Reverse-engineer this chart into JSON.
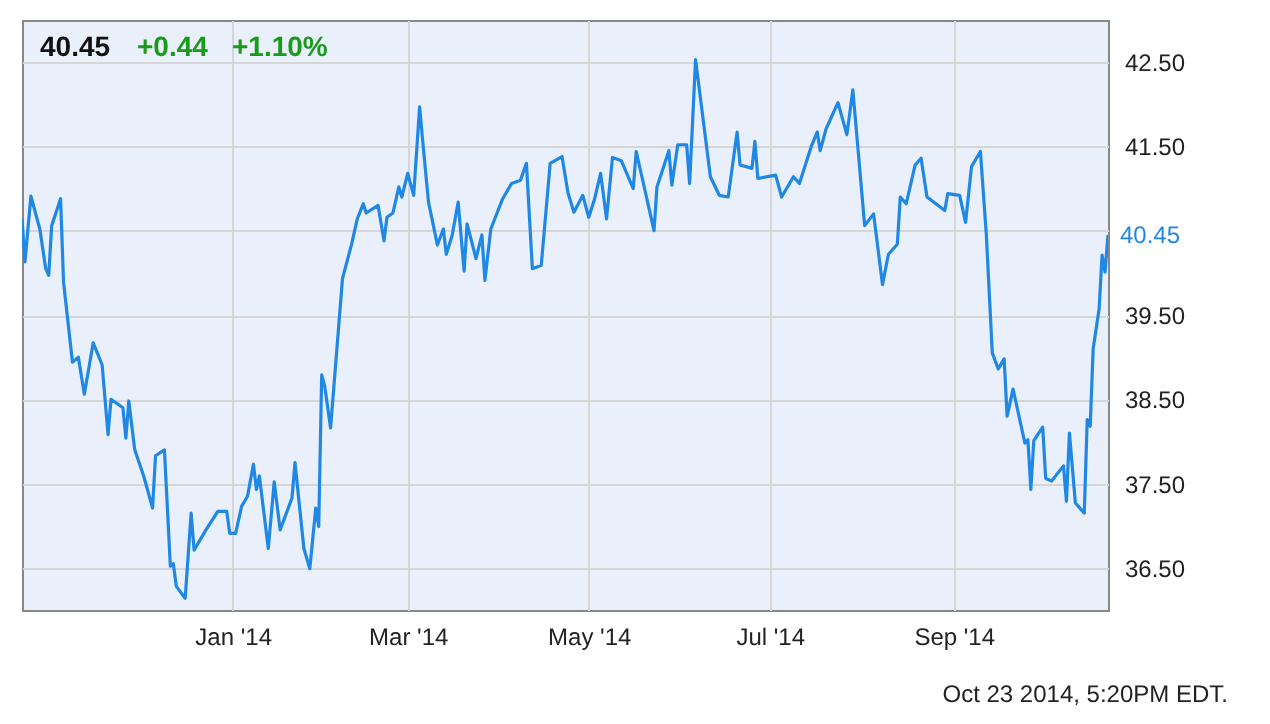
{
  "chart_data": {
    "type": "line",
    "title": "40.45",
    "x": [
      "2013-10-22",
      "2013-10-23",
      "2013-10-25",
      "2013-10-28",
      "2013-10-30",
      "2013-10-31",
      "2013-11-01",
      "2013-11-04",
      "2013-11-05",
      "2013-11-08",
      "2013-11-10",
      "2013-11-12",
      "2013-11-15",
      "2013-11-18",
      "2013-11-20",
      "2013-11-21",
      "2013-11-25",
      "2013-11-26",
      "2013-11-27",
      "2013-11-29",
      "2013-12-02",
      "2013-12-05",
      "2013-12-06",
      "2013-12-09",
      "2013-12-11",
      "2013-12-12",
      "2013-12-13",
      "2013-12-16",
      "2013-12-18",
      "2013-12-19",
      "2013-12-23",
      "2013-12-27",
      "2013-12-30",
      "2013-12-31",
      "2014-01-02",
      "2014-01-04",
      "2014-01-06",
      "2014-01-08",
      "2014-01-09",
      "2014-01-10",
      "2014-01-13",
      "2014-01-15",
      "2014-01-17",
      "2014-01-21",
      "2014-01-22",
      "2014-01-25",
      "2014-01-27",
      "2014-01-29",
      "2014-01-30",
      "2014-01-31",
      "2014-02-01",
      "2014-02-03",
      "2014-02-07",
      "2014-02-10",
      "2014-02-12",
      "2014-02-14",
      "2014-02-15",
      "2014-02-19",
      "2014-02-21",
      "2014-02-22",
      "2014-02-24",
      "2014-02-26",
      "2014-02-27",
      "2014-03-01",
      "2014-03-03",
      "2014-03-05",
      "2014-03-06",
      "2014-03-08",
      "2014-03-11",
      "2014-03-13",
      "2014-03-14",
      "2014-03-16",
      "2014-03-18",
      "2014-03-20",
      "2014-03-21",
      "2014-03-24",
      "2014-03-26",
      "2014-03-27",
      "2014-03-29",
      "2014-04-02",
      "2014-04-05",
      "2014-04-08",
      "2014-04-10",
      "2014-04-12",
      "2014-04-15",
      "2014-04-18",
      "2014-04-22",
      "2014-04-24",
      "2014-04-26",
      "2014-04-29",
      "2014-05-01",
      "2014-05-03",
      "2014-05-05",
      "2014-05-07",
      "2014-05-09",
      "2014-05-12",
      "2014-05-16",
      "2014-05-17",
      "2014-05-23",
      "2014-05-24",
      "2014-05-28",
      "2014-05-29",
      "2014-05-31",
      "2014-06-03",
      "2014-06-04",
      "2014-06-06",
      "2014-06-11",
      "2014-06-14",
      "2014-06-17",
      "2014-06-20",
      "2014-06-21",
      "2014-06-25",
      "2014-06-26",
      "2014-06-27",
      "2014-07-03",
      "2014-07-05",
      "2014-07-09",
      "2014-07-11",
      "2014-07-15",
      "2014-07-17",
      "2014-07-18",
      "2014-07-20",
      "2014-07-24",
      "2014-07-27",
      "2014-07-29",
      "2014-08-02",
      "2014-08-05",
      "2014-08-08",
      "2014-08-10",
      "2014-08-13",
      "2014-08-14",
      "2014-08-16",
      "2014-08-19",
      "2014-08-21",
      "2014-08-23",
      "2014-08-29",
      "2014-08-30",
      "2014-09-03",
      "2014-09-05",
      "2014-09-07",
      "2014-09-10",
      "2014-09-12",
      "2014-09-14",
      "2014-09-16",
      "2014-09-18",
      "2014-09-19",
      "2014-09-21",
      "2014-09-25",
      "2014-09-26",
      "2014-09-27",
      "2014-09-28",
      "2014-10-01",
      "2014-10-02",
      "2014-10-04",
      "2014-10-08",
      "2014-10-09",
      "2014-10-10",
      "2014-10-12",
      "2014-10-15",
      "2014-10-16",
      "2014-10-17",
      "2014-10-18",
      "2014-10-20",
      "2014-10-21",
      "2014-10-22",
      "2014-10-23"
    ],
    "series": [
      {
        "color": "#1f88e5",
        "values": [
          40.64,
          40.13,
          40.91,
          40.52,
          40.05,
          39.97,
          40.56,
          40.88,
          39.89,
          38.94,
          39.0,
          38.56,
          39.17,
          38.91,
          38.08,
          38.5,
          38.4,
          38.04,
          38.48,
          37.9,
          37.59,
          37.21,
          37.83,
          37.9,
          36.52,
          36.55,
          36.28,
          36.14,
          37.15,
          36.71,
          36.95,
          37.17,
          37.17,
          36.91,
          36.91,
          37.23,
          37.35,
          37.73,
          37.43,
          37.59,
          36.73,
          37.52,
          36.95,
          37.33,
          37.75,
          36.73,
          36.49,
          37.21,
          36.99,
          38.79,
          38.66,
          38.16,
          39.93,
          40.33,
          40.64,
          40.82,
          40.71,
          40.8,
          40.38,
          40.66,
          40.71,
          41.02,
          40.9,
          41.18,
          40.92,
          41.97,
          41.58,
          40.84,
          40.33,
          40.52,
          40.22,
          40.45,
          40.84,
          40.02,
          40.58,
          40.17,
          40.45,
          39.91,
          40.52,
          40.88,
          41.06,
          41.1,
          41.3,
          40.05,
          40.09,
          41.3,
          41.38,
          40.95,
          40.72,
          40.92,
          40.66,
          40.88,
          41.18,
          40.64,
          41.37,
          41.33,
          41.0,
          41.44,
          40.5,
          41.02,
          41.45,
          41.04,
          41.52,
          41.52,
          41.06,
          42.53,
          41.14,
          40.92,
          40.9,
          41.67,
          41.28,
          41.24,
          41.56,
          41.12,
          41.16,
          40.9,
          41.14,
          41.06,
          41.5,
          41.67,
          41.45,
          41.71,
          42.02,
          41.64,
          42.17,
          40.56,
          40.7,
          39.86,
          40.22,
          40.34,
          40.9,
          40.82,
          41.28,
          41.36,
          40.9,
          40.74,
          40.94,
          40.92,
          40.6,
          41.26,
          41.44,
          40.45,
          39.05,
          38.86,
          38.98,
          38.3,
          38.62,
          37.98,
          38.02,
          37.43,
          38.01,
          38.17,
          37.56,
          37.53,
          37.71,
          37.29,
          38.1,
          37.27,
          37.15,
          38.26,
          38.18,
          39.1,
          39.57,
          40.21,
          40.01,
          40.45
        ]
      }
    ],
    "xlim": [
      "2013-10-22",
      "2014-10-23"
    ],
    "xticks": [
      {
        "value": "2014-01-01",
        "label": "Jan '14"
      },
      {
        "value": "2014-03-01",
        "label": "Mar '14"
      },
      {
        "value": "2014-05-01",
        "label": "May '14"
      },
      {
        "value": "2014-07-01",
        "label": "Jul '14"
      },
      {
        "value": "2014-09-01",
        "label": "Sep '14"
      }
    ],
    "ylim": [
      36,
      43
    ],
    "yticks": [
      {
        "value": 36.5,
        "label": "36.50"
      },
      {
        "value": 37.5,
        "label": "37.50"
      },
      {
        "value": 38.5,
        "label": "38.50"
      },
      {
        "value": 39.5,
        "label": "39.50"
      },
      {
        "value": 40.5,
        "label": null
      },
      {
        "value": 41.5,
        "label": "41.50"
      },
      {
        "value": 42.5,
        "label": "42.50"
      }
    ],
    "grid": true,
    "legend": false,
    "marker": "none",
    "line_style": "solid",
    "annotations": [
      "+0.44",
      "+1.10%",
      {
        "text": "40.45",
        "x": "2014-10-23",
        "y": 40.45
      },
      "Oct 23 2014, 5:20PM EDT."
    ]
  }
}
